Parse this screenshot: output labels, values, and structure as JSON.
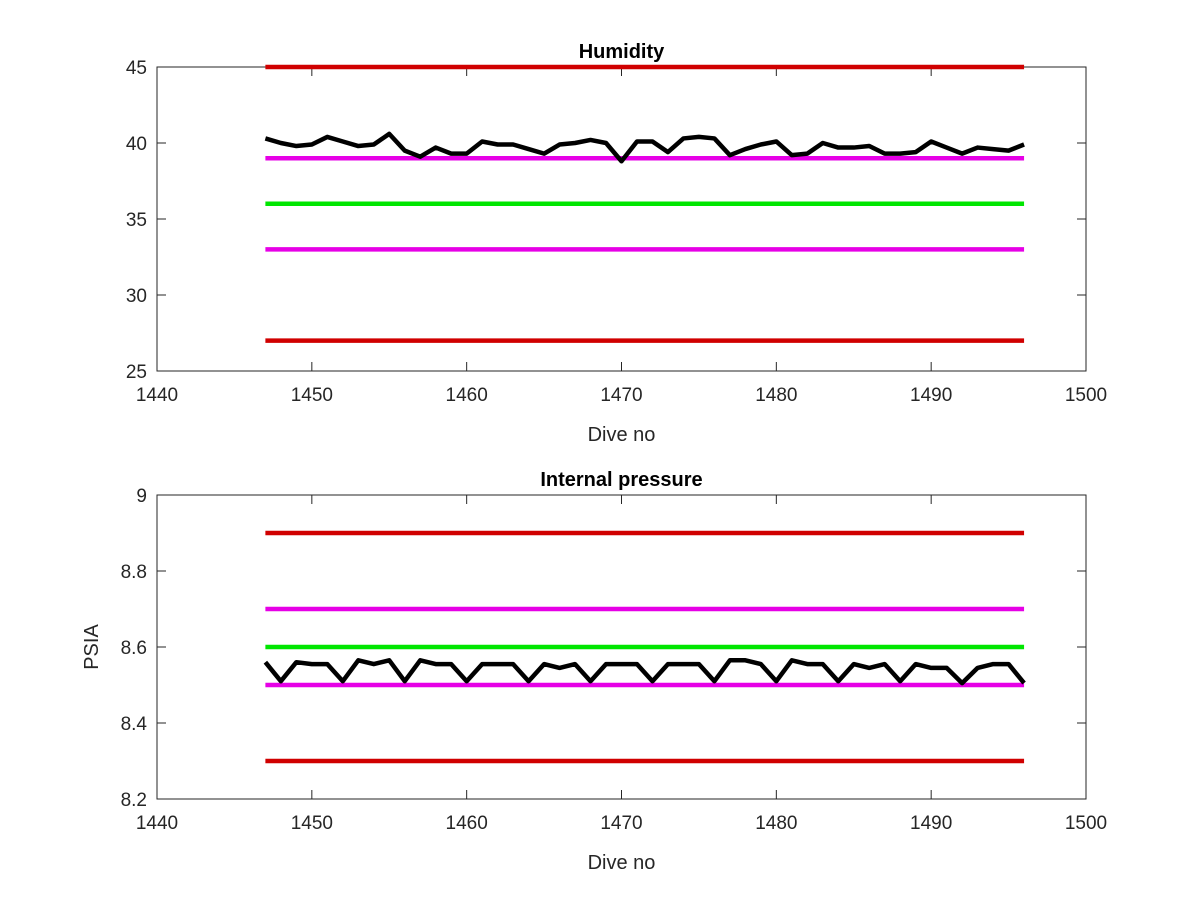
{
  "chart_data": [
    {
      "type": "line",
      "title": "Humidity",
      "xlabel": "Dive no",
      "ylabel": "",
      "xlim": [
        1440,
        1500
      ],
      "ylim": [
        25,
        45
      ],
      "xticks": [
        1440,
        1450,
        1460,
        1470,
        1480,
        1490,
        1500
      ],
      "yticks": [
        25,
        30,
        35,
        40,
        45
      ],
      "grid": false,
      "reference_lines": [
        {
          "y": 45,
          "x": [
            1447,
            1496
          ],
          "color": "#d00000"
        },
        {
          "y": 39,
          "x": [
            1447,
            1496
          ],
          "color": "#e600e6"
        },
        {
          "y": 36,
          "x": [
            1447,
            1496
          ],
          "color": "#00e600"
        },
        {
          "y": 33,
          "x": [
            1447,
            1496
          ],
          "color": "#e600e6"
        },
        {
          "y": 27,
          "x": [
            1447,
            1496
          ],
          "color": "#d00000"
        }
      ],
      "series": [
        {
          "color": "#000000",
          "x": [
            1447,
            1448,
            1449,
            1450,
            1451,
            1452,
            1453,
            1454,
            1455,
            1456,
            1457,
            1458,
            1459,
            1460,
            1461,
            1462,
            1463,
            1464,
            1465,
            1466,
            1467,
            1468,
            1469,
            1470,
            1471,
            1472,
            1473,
            1474,
            1475,
            1476,
            1477,
            1478,
            1479,
            1480,
            1481,
            1482,
            1483,
            1484,
            1485,
            1486,
            1487,
            1488,
            1489,
            1490,
            1491,
            1492,
            1493,
            1494,
            1495,
            1496
          ],
          "y": [
            40.3,
            40.0,
            39.8,
            39.9,
            40.4,
            40.1,
            39.8,
            39.9,
            40.6,
            39.5,
            39.1,
            39.7,
            39.3,
            39.3,
            40.1,
            39.9,
            39.9,
            39.6,
            39.3,
            39.9,
            40.0,
            40.2,
            40.0,
            38.8,
            40.1,
            40.1,
            39.4,
            40.3,
            40.4,
            40.3,
            39.2,
            39.6,
            39.9,
            40.1,
            39.2,
            39.3,
            40.0,
            39.7,
            39.7,
            39.8,
            39.3,
            39.3,
            39.4,
            40.1,
            39.7,
            39.3,
            39.7,
            39.6,
            39.5,
            39.9
          ]
        }
      ]
    },
    {
      "type": "line",
      "title": "Internal pressure",
      "xlabel": "Dive no",
      "ylabel": "PSIA",
      "xlim": [
        1440,
        1500
      ],
      "ylim": [
        8.2,
        9.0
      ],
      "xticks": [
        1440,
        1450,
        1460,
        1470,
        1480,
        1490,
        1500
      ],
      "yticks": [
        8.2,
        8.4,
        8.6,
        8.8,
        9.0
      ],
      "ytick_labels": [
        "8.2",
        "8.4",
        "8.6",
        "8.8",
        "9"
      ],
      "grid": false,
      "reference_lines": [
        {
          "y": 8.9,
          "x": [
            1447,
            1496
          ],
          "color": "#d00000"
        },
        {
          "y": 8.7,
          "x": [
            1447,
            1496
          ],
          "color": "#e600e6"
        },
        {
          "y": 8.6,
          "x": [
            1447,
            1496
          ],
          "color": "#00e600"
        },
        {
          "y": 8.5,
          "x": [
            1447,
            1496
          ],
          "color": "#e600e6"
        },
        {
          "y": 8.3,
          "x": [
            1447,
            1496
          ],
          "color": "#d00000"
        }
      ],
      "series": [
        {
          "color": "#000000",
          "x": [
            1447,
            1448,
            1449,
            1450,
            1451,
            1452,
            1453,
            1454,
            1455,
            1456,
            1457,
            1458,
            1459,
            1460,
            1461,
            1462,
            1463,
            1464,
            1465,
            1466,
            1467,
            1468,
            1469,
            1470,
            1471,
            1472,
            1473,
            1474,
            1475,
            1476,
            1477,
            1478,
            1479,
            1480,
            1481,
            1482,
            1483,
            1484,
            1485,
            1486,
            1487,
            1488,
            1489,
            1490,
            1491,
            1492,
            1493,
            1494,
            1495,
            1496
          ],
          "y": [
            8.56,
            8.51,
            8.56,
            8.555,
            8.555,
            8.51,
            8.565,
            8.555,
            8.565,
            8.51,
            8.565,
            8.555,
            8.555,
            8.51,
            8.555,
            8.555,
            8.555,
            8.51,
            8.555,
            8.545,
            8.555,
            8.51,
            8.555,
            8.555,
            8.555,
            8.51,
            8.555,
            8.555,
            8.555,
            8.51,
            8.565,
            8.565,
            8.555,
            8.51,
            8.565,
            8.555,
            8.555,
            8.51,
            8.555,
            8.545,
            8.555,
            8.51,
            8.555,
            8.545,
            8.545,
            8.505,
            8.545,
            8.555,
            8.555,
            8.505
          ]
        }
      ]
    }
  ]
}
